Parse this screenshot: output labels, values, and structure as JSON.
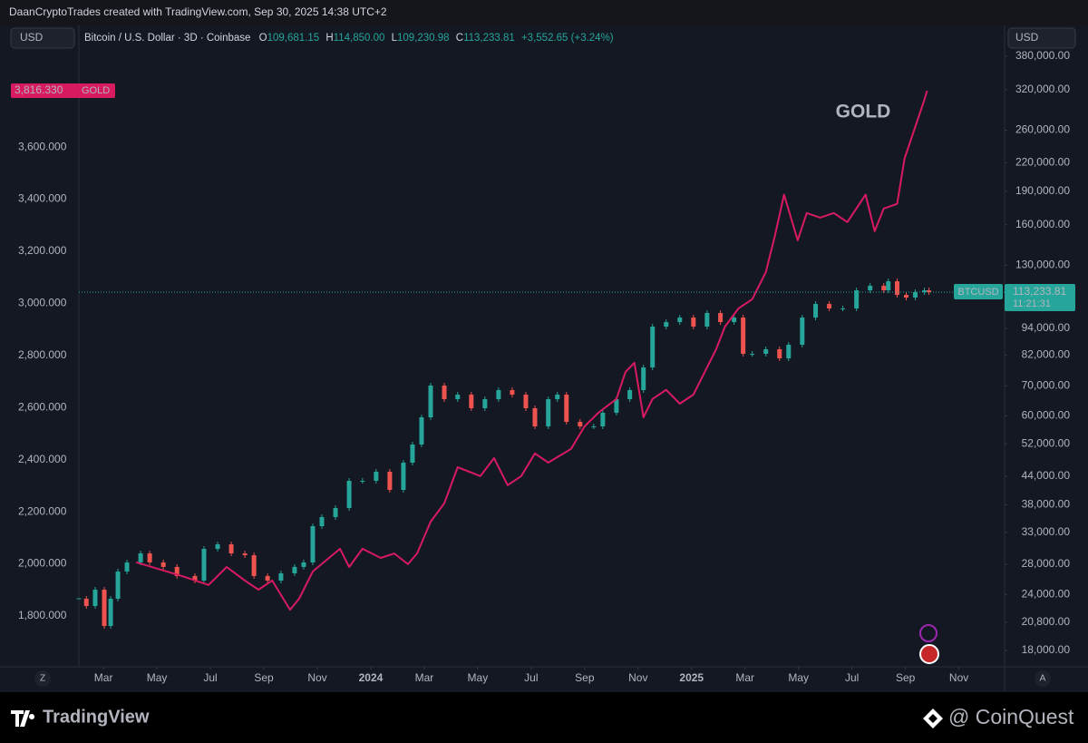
{
  "header": {
    "credit": "DaanCryptoTrades created with TradingView.com, Sep 30, 2025 14:38 UTC+2"
  },
  "chart_data": {
    "type": "candlestick",
    "symbol": "Bitcoin / U.S. Dollar · 3D · Coinbase",
    "currency": "USD",
    "ohlc": [
      {
        "key": "O",
        "value": "109,681.15"
      },
      {
        "key": "H",
        "value": "114,850.00"
      },
      {
        "key": "L",
        "value": "109,230.98"
      },
      {
        "key": "C",
        "value": "113,233.81"
      }
    ],
    "change": "+3,552.65 (+3.24%)",
    "annotation": "GOLD",
    "xlim": [
      1.08,
      35.71
    ],
    "xticks": [
      {
        "value": 2,
        "label": "Mar"
      },
      {
        "value": 4,
        "label": "May"
      },
      {
        "value": 6,
        "label": "Jul"
      },
      {
        "value": 8,
        "label": "Sep"
      },
      {
        "value": 10,
        "label": "Nov"
      },
      {
        "value": 12,
        "label": "2024"
      },
      {
        "value": 14,
        "label": "Mar"
      },
      {
        "value": 16,
        "label": "May"
      },
      {
        "value": 18,
        "label": "Jul"
      },
      {
        "value": 20,
        "label": "Sep"
      },
      {
        "value": 22,
        "label": "Nov"
      },
      {
        "value": 24,
        "label": "2025"
      },
      {
        "value": 26,
        "label": "Mar"
      },
      {
        "value": 28,
        "label": "May"
      },
      {
        "value": 30,
        "label": "Jul"
      },
      {
        "value": 32,
        "label": "Sep"
      },
      {
        "value": 34,
        "label": "Nov"
      }
    ],
    "ylim": [
      1605,
      4060
    ],
    "yticks": [
      {
        "value": 1800,
        "label": "1,800.000"
      },
      {
        "value": 2000,
        "label": "2,000.000"
      },
      {
        "value": 2200,
        "label": "2,200.000"
      },
      {
        "value": 2400,
        "label": "2,400.000"
      },
      {
        "value": 2600,
        "label": "2,600.000"
      },
      {
        "value": 2800,
        "label": "2,800.000"
      },
      {
        "value": 3000,
        "label": "3,000.000"
      },
      {
        "value": 3200,
        "label": "3,200.000"
      },
      {
        "value": 3400,
        "label": "3,400.000"
      },
      {
        "value": 3600,
        "label": "3,600.000"
      }
    ],
    "y2lim": [
      16550,
      441000
    ],
    "y2_log": true,
    "y2ticks": [
      {
        "value": 18000,
        "label": "18,000.00"
      },
      {
        "value": 20800,
        "label": "20,800.00"
      },
      {
        "value": 24000,
        "label": "24,000.00"
      },
      {
        "value": 28000,
        "label": "28,000.00"
      },
      {
        "value": 33000,
        "label": "33,000.00"
      },
      {
        "value": 38000,
        "label": "38,000.00"
      },
      {
        "value": 44000,
        "label": "44,000.00"
      },
      {
        "value": 52000,
        "label": "52,000.00"
      },
      {
        "value": 60000,
        "label": "60,000.00"
      },
      {
        "value": 70000,
        "label": "70,000.00"
      },
      {
        "value": 82000,
        "label": "82,000.00"
      },
      {
        "value": 94000,
        "label": "94,000.00"
      },
      {
        "value": 130000,
        "label": "130,000.00"
      },
      {
        "value": 160000,
        "label": "160,000.00"
      },
      {
        "value": 190000,
        "label": "190,000.00"
      },
      {
        "value": 220000,
        "label": "220,000.00"
      },
      {
        "value": 260000,
        "label": "260,000.00"
      },
      {
        "value": 320000,
        "label": "320,000.00"
      },
      {
        "value": 380000,
        "label": "380,000.00"
      }
    ],
    "grid": false,
    "series": [
      {
        "name": "BTCUSD",
        "type": "candlestick",
        "axis": "y2",
        "color": "#26a69a",
        "down_color": "#ef5350",
        "x": [
          1.08,
          1.36,
          1.69,
          2.03,
          2.27,
          2.54,
          2.88,
          3.39,
          3.73,
          4.24,
          4.75,
          5.42,
          5.76,
          6.27,
          6.78,
          7.29,
          7.63,
          8.14,
          8.64,
          9.15,
          9.49,
          9.83,
          10.17,
          10.68,
          11.19,
          11.69,
          12.2,
          12.71,
          13.22,
          13.56,
          13.9,
          14.24,
          14.75,
          15.25,
          15.76,
          16.27,
          16.78,
          17.29,
          17.8,
          18.14,
          18.64,
          18.98,
          19.32,
          19.83,
          20.34,
          20.68,
          21.19,
          21.69,
          22.2,
          22.54,
          23.05,
          23.56,
          24.07,
          24.58,
          25.08,
          25.59,
          25.93,
          26.27,
          26.78,
          27.29,
          27.63,
          28.14,
          28.64,
          29.15,
          29.66,
          30.17,
          30.68,
          31.19,
          31.36,
          31.69,
          32.03,
          32.37,
          32.71,
          32.88
        ],
        "values": [
          23470,
          22610,
          24590,
          20410,
          23470,
          26990,
          28280,
          29620,
          28280,
          27630,
          26370,
          25760,
          30320,
          31030,
          29620,
          29340,
          26370,
          25760,
          26740,
          27630,
          28280,
          34060,
          35690,
          37380,
          42990,
          42990,
          45040,
          41030,
          47180,
          51790,
          59550,
          70090,
          65360,
          66900,
          62390,
          65360,
          68480,
          66900,
          62390,
          56840,
          65360,
          66900,
          58180,
          56840,
          56840,
          60950,
          65360,
          68480,
          76930,
          94860,
          97090,
          99380,
          94860,
          101720,
          97090,
          99380,
          82490,
          82490,
          84440,
          80600,
          86420,
          99380,
          106560,
          104110,
          104110,
          114280,
          116960,
          114280,
          119720,
          111650,
          110110,
          113220,
          114280,
          113233.81
        ],
        "last_price": {
          "value": 113233.81,
          "label": "113,233.81"
        },
        "countdown": "11:21:31"
      },
      {
        "name": "GOLD",
        "type": "line",
        "axis": "y",
        "color": "#d81b60",
        "x": [
          3.22,
          4.92,
          5.93,
          6.61,
          7.29,
          7.8,
          8.31,
          8.98,
          9.32,
          9.83,
          10.85,
          11.19,
          11.69,
          12.37,
          12.88,
          13.39,
          13.73,
          14.24,
          14.75,
          15.25,
          16.1,
          16.61,
          17.12,
          17.63,
          18.14,
          18.64,
          19.49,
          20.0,
          20.51,
          21.19,
          21.53,
          21.86,
          22.2,
          22.54,
          23.05,
          23.56,
          24.07,
          24.58,
          24.92,
          25.25,
          25.76,
          26.27,
          26.78,
          27.12,
          27.46,
          27.97,
          28.31,
          28.81,
          29.32,
          29.83,
          30.51,
          30.85,
          31.19,
          31.69,
          31.97,
          32.37,
          32.71,
          32.81
        ],
        "values": [
          2006,
          1954,
          1919,
          1988,
          1936,
          1901,
          1936,
          1824,
          1866,
          1971,
          2058,
          1988,
          2058,
          2023,
          2040,
          1999,
          2040,
          2162,
          2232,
          2371,
          2337,
          2406,
          2302,
          2337,
          2424,
          2389,
          2441,
          2528,
          2580,
          2633,
          2737,
          2772,
          2563,
          2633,
          2668,
          2615,
          2650,
          2755,
          2824,
          2911,
          2981,
          3016,
          3120,
          3260,
          3417,
          3242,
          3347,
          3329,
          3347,
          3312,
          3417,
          3277,
          3364,
          3382,
          3556,
          3678,
          3782,
          3816.33
        ],
        "last_price": {
          "value": 3816.33,
          "label": "3,816.330"
        }
      }
    ],
    "scale_buttons": {
      "left": "Z",
      "right": "A"
    }
  },
  "footer": {
    "brand": "TradingView",
    "watermark": "@ CoinQuest"
  }
}
